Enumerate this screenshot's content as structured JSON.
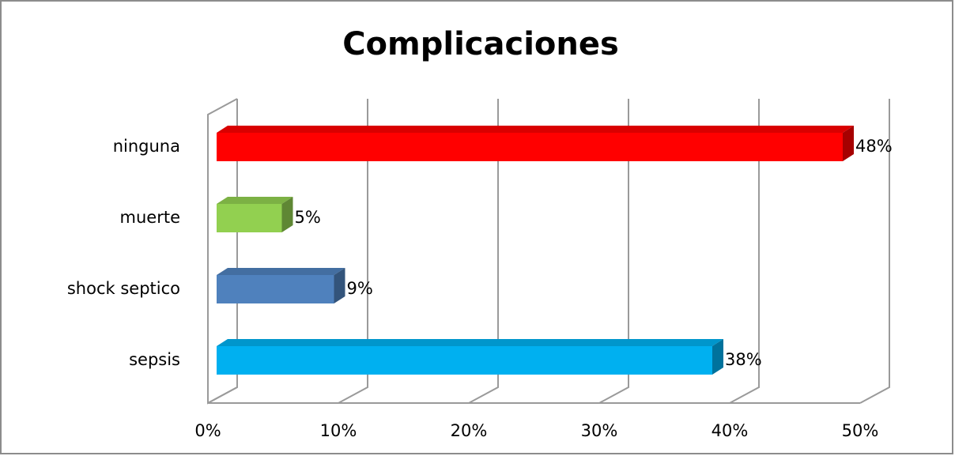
{
  "chart_data": {
    "type": "bar",
    "orientation": "horizontal",
    "three_d": true,
    "title": "Complicaciones",
    "categories": [
      "ninguna",
      "muerte",
      "shock septico",
      "sepsis"
    ],
    "series": [
      {
        "values": [
          48,
          5,
          9,
          38
        ],
        "value_labels": [
          "48%",
          "5%",
          "9%",
          "38%"
        ],
        "colors": [
          "#ff0000",
          "#92d050",
          "#4f81bd",
          "#00b0f0"
        ]
      }
    ],
    "xlim": [
      0,
      50
    ],
    "xticks": [
      {
        "value": 0,
        "label": "0%"
      },
      {
        "value": 10,
        "label": "10%"
      },
      {
        "value": 20,
        "label": "20%"
      },
      {
        "value": 30,
        "label": "30%"
      },
      {
        "value": 40,
        "label": "40%"
      },
      {
        "value": 50,
        "label": "50%"
      }
    ],
    "grid": true
  }
}
